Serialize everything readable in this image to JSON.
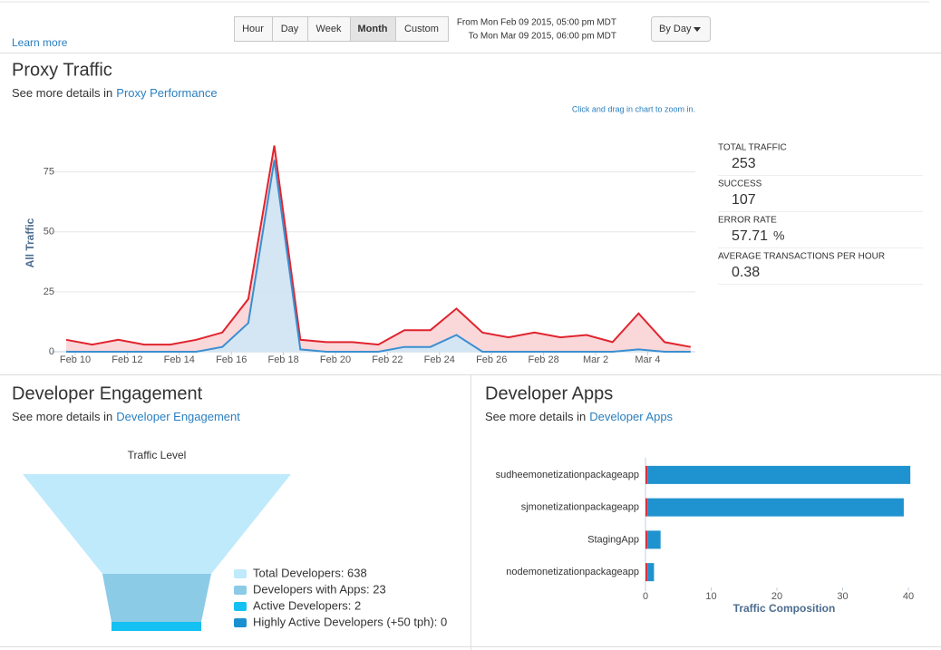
{
  "toolbar": {
    "learn_more": "Learn more",
    "ranges": [
      "Hour",
      "Day",
      "Week",
      "Month",
      "Custom"
    ],
    "active_range": "Month",
    "from": "From Mon Feb 09 2015, 05:00 pm MDT",
    "to": "To Mon Mar 09 2015, 06:00 pm MDT",
    "group_by": "By Day"
  },
  "proxy_traffic": {
    "title": "Proxy Traffic",
    "details_prefix": "See more details in",
    "details_link": "Proxy Performance",
    "hint": "Click and drag in chart to zoom in.",
    "stats": [
      {
        "label": "TOTAL TRAFFIC",
        "value": 253
      },
      {
        "label": "SUCCESS",
        "value": 107
      },
      {
        "label": "ERROR RATE",
        "value": 57.71,
        "unit": "%"
      },
      {
        "label": "AVERAGE TRANSACTIONS PER HOUR",
        "value": 0.38
      }
    ]
  },
  "developer_engagement": {
    "title": "Developer Engagement",
    "details_prefix": "See more details in",
    "details_link": "Developer Engagement",
    "funnel": {
      "title": "Traffic Level",
      "items": [
        {
          "label": "Total Developers: 638",
          "color": "#bfeafb"
        },
        {
          "label": "Developers with Apps: 23",
          "color": "#8ccbe6"
        },
        {
          "label": "Active Developers: 2",
          "color": "#14c1f2"
        },
        {
          "label": "Highly Active Developers (+50 tph): 0",
          "color": "#1a90d0"
        }
      ]
    }
  },
  "developer_apps": {
    "title": "Developer Apps",
    "details_prefix": "See more details in",
    "details_link": "Developer Apps"
  },
  "chart_data": [
    {
      "type": "area",
      "y_label": "All Traffic",
      "categories": [
        "Feb 10",
        null,
        "Feb 12",
        null,
        "Feb 14",
        null,
        "Feb 16",
        null,
        "Feb 18",
        null,
        "Feb 20",
        null,
        "Feb 22",
        null,
        "Feb 24",
        null,
        "Feb 26",
        null,
        "Feb 28",
        null,
        "Mar 2",
        null,
        "Mar 4",
        null,
        null
      ],
      "series": [
        {
          "color": "#e0242e",
          "fill": "#f9d3d5",
          "values": [
            5,
            3,
            5,
            3,
            3,
            5,
            8,
            22,
            86,
            5,
            4,
            4,
            3,
            9,
            9,
            18,
            8,
            6,
            8,
            6,
            7,
            4,
            16,
            4,
            2
          ]
        },
        {
          "color": "#3a8fd0",
          "fill": "#cfe7f5",
          "values": [
            0,
            0,
            0,
            0,
            0,
            0,
            2,
            12,
            80,
            1,
            0,
            0,
            0,
            2,
            2,
            7,
            0,
            0,
            0,
            0,
            0,
            0,
            1,
            0,
            0
          ]
        }
      ],
      "ylim": [
        0,
        90
      ],
      "yticks": [
        0,
        25,
        50,
        75
      ],
      "grid": true
    },
    {
      "type": "hbar",
      "x_label": "Traffic Composition",
      "categories": [
        "sudheemonetizationpackageapp",
        "sjmonetizationpackageapp",
        "StagingApp",
        "nodemonetizationpackageapp"
      ],
      "series": [
        {
          "color": "#d9303f",
          "values": [
            0.3,
            0.3,
            0.3,
            0.3
          ]
        },
        {
          "color": "#1f93cf",
          "values": [
            40,
            39,
            2,
            1
          ]
        }
      ],
      "stacked": true,
      "xlim": [
        0,
        41
      ],
      "xticks": [
        0,
        10,
        20,
        30,
        40
      ]
    }
  ]
}
